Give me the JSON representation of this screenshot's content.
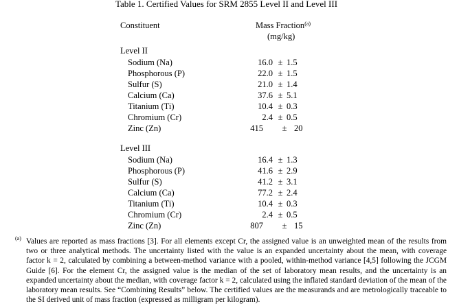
{
  "title": "Table 1.  Certified Values for SRM 2855 Level II and Level III",
  "headers": {
    "constituent": "Constituent",
    "mass_fraction": "Mass Fraction",
    "mass_fraction_note": "(a)",
    "unit": "(mg/kg)"
  },
  "pm": "±",
  "groups": [
    {
      "label": "Level II",
      "rows": [
        {
          "name": "Sodium (Na)",
          "value": "16.0",
          "uncertainty": "1.5"
        },
        {
          "name": "Phosphorous (P)",
          "value": "22.0",
          "uncertainty": "1.5"
        },
        {
          "name": "Sulfur (S)",
          "value": "21.0",
          "uncertainty": "1.4"
        },
        {
          "name": "Calcium (Ca)",
          "value": "37.6",
          "uncertainty": "5.1"
        },
        {
          "name": "Titanium (Ti)",
          "value": "10.4",
          "uncertainty": "0.3"
        },
        {
          "name": "Chromium (Cr)",
          "value": "2.4",
          "uncertainty": "0.5"
        },
        {
          "name": "Zinc (Zn)",
          "value": "415",
          "uncertainty": "20"
        }
      ]
    },
    {
      "label": "Level III",
      "rows": [
        {
          "name": "Sodium (Na)",
          "value": "16.4",
          "uncertainty": "1.3"
        },
        {
          "name": "Phosphorous (P)",
          "value": "41.6",
          "uncertainty": "2.9"
        },
        {
          "name": "Sulfur (S)",
          "value": "41.2",
          "uncertainty": "3.1"
        },
        {
          "name": "Calcium (Ca)",
          "value": "77.2",
          "uncertainty": "2.4"
        },
        {
          "name": "Titanium (Ti)",
          "value": "10.4",
          "uncertainty": "0.3"
        },
        {
          "name": "Chromium (Cr)",
          "value": "2.4",
          "uncertainty": "0.5"
        },
        {
          "name": "Zinc (Zn)",
          "value": "807",
          "uncertainty": "15"
        }
      ]
    }
  ],
  "footnote": {
    "marker": "(a)",
    "text": "Values are reported as mass fractions [3].  For all elements except Cr, the assigned value is an unweighted mean of the results from two or three analytical methods.  The uncertainty listed with the value is an expanded uncertainty about the mean, with coverage factor k = 2, calculated by combining a between-method variance with a pooled, within-method variance [4,5] following the JCGM Guide [6].  For the element Cr, the assigned value is the median of the set of laboratory mean results, and the uncertainty is an expanded uncertainty about the median, with coverage factor k = 2, calculated using the inflated standard deviation of the mean of the laboratory mean results.  See “Combining Results” below.  The certified values are the measurands and are metrologically traceable to the SI derived unit of mass fraction (expressed as milligram per kilogram)."
  }
}
